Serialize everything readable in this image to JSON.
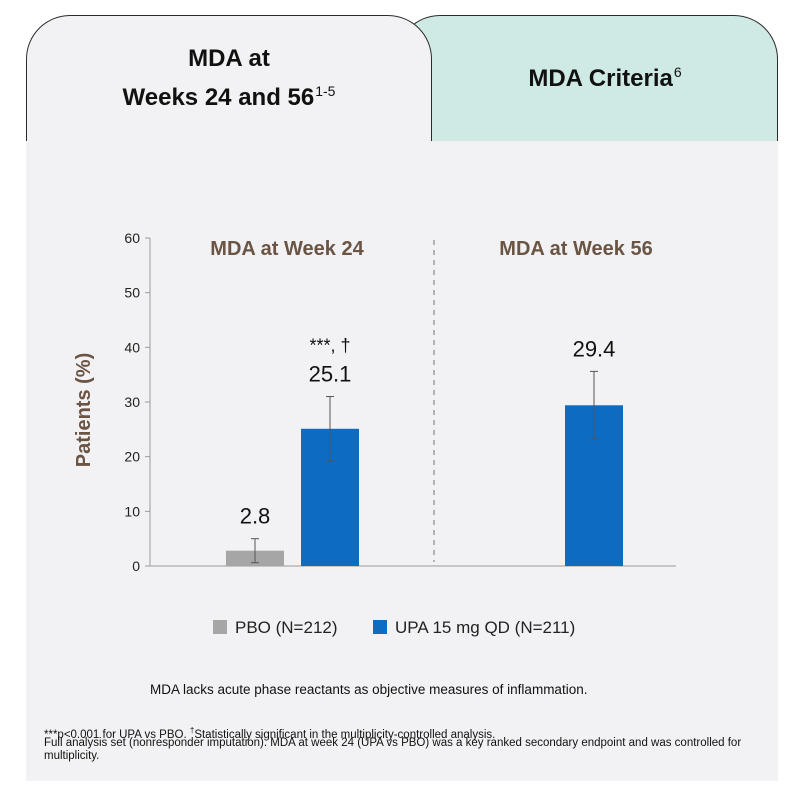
{
  "tabs": {
    "left": {
      "line1": "MDA at",
      "line2": "Weeks 24 and 56",
      "ref": "1-5"
    },
    "right": {
      "label": "MDA Criteria",
      "ref": "6"
    }
  },
  "chart_data": {
    "type": "bar",
    "ylabel": "Patients (%)",
    "ylim": [
      0,
      60
    ],
    "yticks": [
      0,
      10,
      20,
      30,
      40,
      50,
      60
    ],
    "panels": [
      {
        "title": "MDA at Week 24",
        "bars": [
          {
            "series": "PBO",
            "value": 2.8,
            "label": "2.8",
            "err_low": 0.6,
            "err_high": 5.0
          },
          {
            "series": "UPA",
            "value": 25.1,
            "label": "25.1",
            "err_low": 19.2,
            "err_high": 31.0,
            "annotation": "***, †"
          }
        ]
      },
      {
        "title": "MDA at Week 56",
        "bars": [
          {
            "series": "UPA",
            "value": 29.4,
            "label": "29.4",
            "err_low": 23.2,
            "err_high": 35.6
          }
        ]
      }
    ],
    "legend": [
      {
        "key": "PBO",
        "label": "PBO (N=212)",
        "color": "#a6a6a6"
      },
      {
        "key": "UPA",
        "label": "UPA 15 mg QD (N=211)",
        "color": "#0e6bc2"
      }
    ],
    "title_color": "#6a5444"
  },
  "note": "MDA lacks acute phase reactants as objective measures of inflammation.",
  "footnotes": {
    "f1a": "***p<0.001 for UPA vs PBO. ",
    "f1b_mark": "†",
    "f1b": "Statistically significant in the multiplicity-controlled analysis.",
    "f2": "Full analysis set (nonresponder imputation). MDA at week 24 (UPA vs PBO) was a key ranked secondary endpoint and was controlled for multiplicity."
  }
}
